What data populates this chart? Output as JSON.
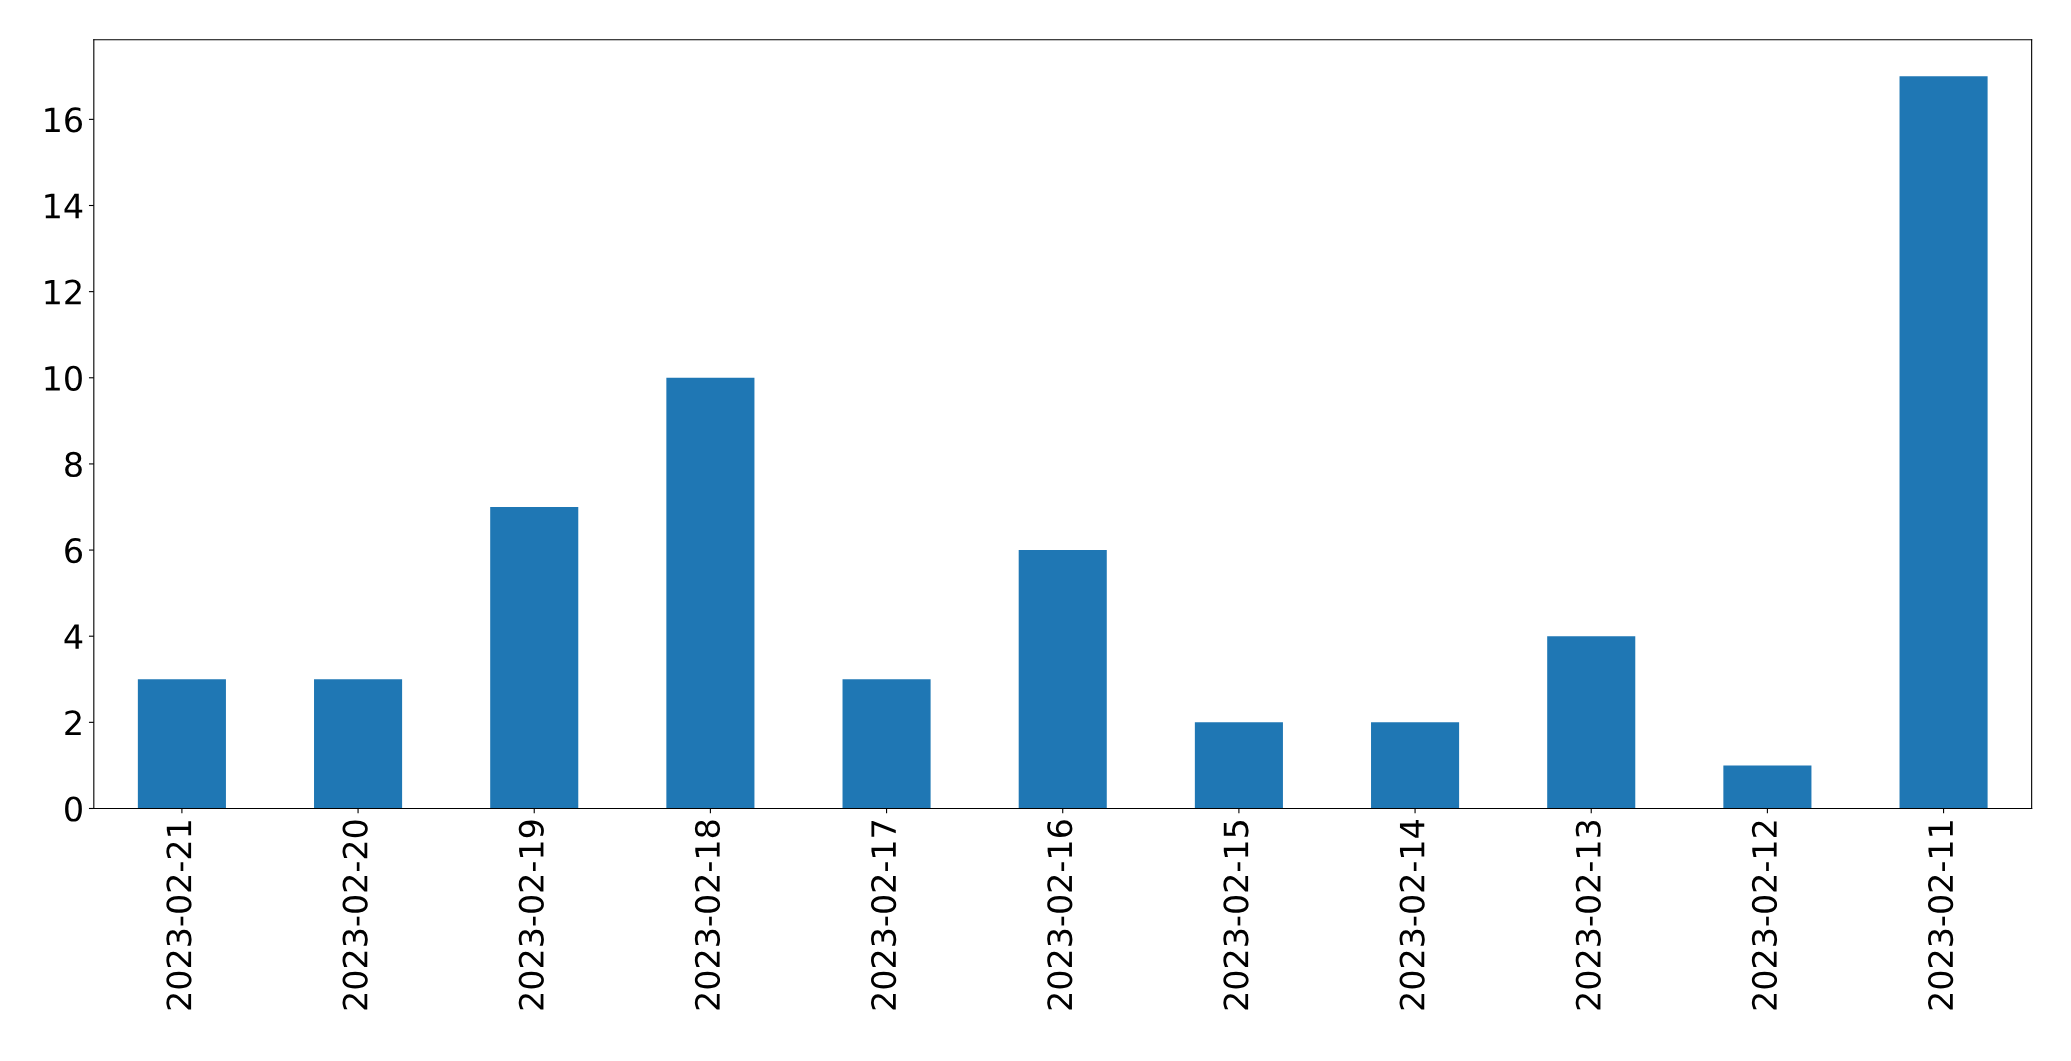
{
  "chart_data": {
    "type": "bar",
    "categories": [
      "2023-02-21",
      "2023-02-20",
      "2023-02-19",
      "2023-02-18",
      "2023-02-17",
      "2023-02-16",
      "2023-02-15",
      "2023-02-14",
      "2023-02-13",
      "2023-02-12",
      "2023-02-11"
    ],
    "values": [
      3,
      3,
      7,
      10,
      3,
      6,
      2,
      2,
      4,
      1,
      17
    ],
    "color": "#1f77b4",
    "ylim": [
      0,
      17.85
    ],
    "yticks": [
      0,
      2,
      4,
      6,
      8,
      10,
      12,
      14,
      16
    ],
    "grid": false,
    "legend": false
  }
}
